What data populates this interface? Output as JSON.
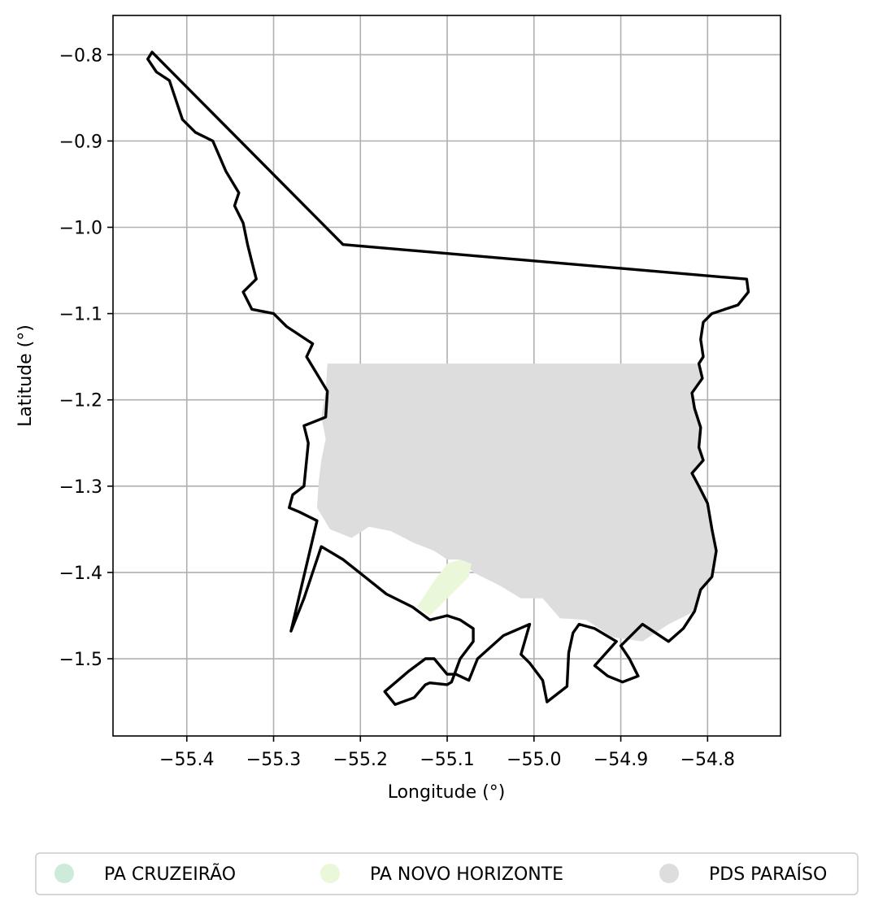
{
  "chart_data": {
    "type": "map",
    "xlabel": "Longitude (°)",
    "ylabel": "Latitude (°)",
    "xlim": [
      -55.485,
      -54.716
    ],
    "ylim": [
      -1.5895,
      -0.7545
    ],
    "grid": true,
    "x_ticks": [
      {
        "value": -55.4,
        "label": "−55.4"
      },
      {
        "value": -55.3,
        "label": "−55.3"
      },
      {
        "value": -55.2,
        "label": "−55.2"
      },
      {
        "value": -55.1,
        "label": "−55.1"
      },
      {
        "value": -55.0,
        "label": "−55.0"
      },
      {
        "value": -54.9,
        "label": "−54.9"
      },
      {
        "value": -54.8,
        "label": "−54.8"
      }
    ],
    "y_ticks": [
      {
        "value": -0.8,
        "label": "−0.8"
      },
      {
        "value": -0.9,
        "label": "−0.9"
      },
      {
        "value": -1.0,
        "label": "−1.0"
      },
      {
        "value": -1.1,
        "label": "−1.1"
      },
      {
        "value": -1.2,
        "label": "−1.2"
      },
      {
        "value": -1.3,
        "label": "−1.3"
      },
      {
        "value": -1.4,
        "label": "−1.4"
      },
      {
        "value": -1.5,
        "label": "−1.5"
      }
    ],
    "legend_position": "bottom",
    "legend": [
      {
        "name": "PA CRUZEIRÃO",
        "color": "#cdeadb"
      },
      {
        "name": "PA NOVO HORIZONTE",
        "color": "#eaf7d9"
      },
      {
        "name": "PDS PARAÍSO",
        "color": "#dddddd"
      }
    ],
    "areas": [
      {
        "name": "PDS PARAÍSO",
        "color": "#dddddd",
        "coords": [
          [
            -55.238,
            -1.158
          ],
          [
            -54.81,
            -1.158
          ],
          [
            -54.806,
            -1.175
          ],
          [
            -54.818,
            -1.192
          ],
          [
            -54.815,
            -1.21
          ],
          [
            -54.808,
            -1.232
          ],
          [
            -54.81,
            -1.255
          ],
          [
            -54.805,
            -1.27
          ],
          [
            -54.818,
            -1.285
          ],
          [
            -54.81,
            -1.3
          ],
          [
            -54.8,
            -1.32
          ],
          [
            -54.795,
            -1.35
          ],
          [
            -54.79,
            -1.375
          ],
          [
            -54.795,
            -1.405
          ],
          [
            -54.808,
            -1.42
          ],
          [
            -54.815,
            -1.445
          ],
          [
            -54.845,
            -1.46
          ],
          [
            -54.875,
            -1.48
          ],
          [
            -54.91,
            -1.475
          ],
          [
            -54.94,
            -1.455
          ],
          [
            -54.97,
            -1.453
          ],
          [
            -54.99,
            -1.43
          ],
          [
            -55.015,
            -1.43
          ],
          [
            -55.04,
            -1.415
          ],
          [
            -55.07,
            -1.4
          ],
          [
            -55.085,
            -1.385
          ],
          [
            -55.1,
            -1.385
          ],
          [
            -55.115,
            -1.375
          ],
          [
            -55.14,
            -1.365
          ],
          [
            -55.165,
            -1.352
          ],
          [
            -55.19,
            -1.347
          ],
          [
            -55.21,
            -1.36
          ],
          [
            -55.235,
            -1.35
          ],
          [
            -55.25,
            -1.325
          ],
          [
            -55.248,
            -1.295
          ],
          [
            -55.245,
            -1.27
          ],
          [
            -55.24,
            -1.245
          ],
          [
            -55.245,
            -1.22
          ],
          [
            -55.24,
            -1.19
          ]
        ]
      },
      {
        "name": "PA NOVO HORIZONTE",
        "color": "#eaf7d9",
        "coords": [
          [
            -55.085,
            -1.385
          ],
          [
            -55.072,
            -1.39
          ],
          [
            -55.075,
            -1.405
          ],
          [
            -55.095,
            -1.425
          ],
          [
            -55.12,
            -1.45
          ],
          [
            -55.135,
            -1.44
          ],
          [
            -55.115,
            -1.41
          ],
          [
            -55.1,
            -1.39
          ]
        ]
      }
    ],
    "outlines": [
      {
        "name": "boundary",
        "coords": [
          [
            -55.44,
            -0.797
          ],
          [
            -55.22,
            -1.02
          ],
          [
            -54.755,
            -1.06
          ],
          [
            -54.753,
            -1.075
          ],
          [
            -54.765,
            -1.09
          ],
          [
            -54.78,
            -1.095
          ],
          [
            -54.795,
            -1.1
          ],
          [
            -54.805,
            -1.11
          ],
          [
            -54.808,
            -1.13
          ],
          [
            -54.805,
            -1.15
          ],
          [
            -54.81,
            -1.158
          ],
          [
            -54.806,
            -1.175
          ],
          [
            -54.818,
            -1.192
          ],
          [
            -54.815,
            -1.21
          ],
          [
            -54.808,
            -1.232
          ],
          [
            -54.81,
            -1.255
          ],
          [
            -54.805,
            -1.27
          ],
          [
            -54.818,
            -1.285
          ],
          [
            -54.81,
            -1.3
          ],
          [
            -54.8,
            -1.32
          ],
          [
            -54.795,
            -1.35
          ],
          [
            -54.79,
            -1.375
          ],
          [
            -54.795,
            -1.405
          ],
          [
            -54.808,
            -1.42
          ],
          [
            -54.815,
            -1.445
          ],
          [
            -54.828,
            -1.465
          ],
          [
            -54.845,
            -1.48
          ],
          [
            -54.875,
            -1.46
          ],
          [
            -54.9,
            -1.485
          ],
          [
            -54.89,
            -1.5
          ],
          [
            -54.88,
            -1.52
          ],
          [
            -54.898,
            -1.527
          ],
          [
            -54.915,
            -1.52
          ],
          [
            -54.93,
            -1.508
          ],
          [
            -54.905,
            -1.48
          ],
          [
            -54.93,
            -1.465
          ],
          [
            -54.948,
            -1.46
          ],
          [
            -54.955,
            -1.47
          ],
          [
            -54.96,
            -1.493
          ],
          [
            -54.962,
            -1.532
          ],
          [
            -54.985,
            -1.55
          ],
          [
            -54.99,
            -1.525
          ],
          [
            -55.005,
            -1.505
          ],
          [
            -55.015,
            -1.495
          ],
          [
            -55.005,
            -1.46
          ],
          [
            -55.035,
            -1.473
          ],
          [
            -55.065,
            -1.5
          ],
          [
            -55.075,
            -1.525
          ],
          [
            -55.09,
            -1.518
          ],
          [
            -55.1,
            -1.518
          ],
          [
            -55.115,
            -1.5
          ],
          [
            -55.125,
            -1.5
          ],
          [
            -55.145,
            -1.515
          ],
          [
            -55.172,
            -1.538
          ],
          [
            -55.16,
            -1.553
          ],
          [
            -55.138,
            -1.545
          ],
          [
            -55.125,
            -1.53
          ],
          [
            -55.12,
            -1.528
          ],
          [
            -55.1,
            -1.53
          ],
          [
            -55.095,
            -1.527
          ],
          [
            -55.085,
            -1.5
          ],
          [
            -55.07,
            -1.48
          ],
          [
            -55.07,
            -1.465
          ],
          [
            -55.085,
            -1.455
          ],
          [
            -55.1,
            -1.45
          ],
          [
            -55.12,
            -1.455
          ],
          [
            -55.14,
            -1.44
          ],
          [
            -55.17,
            -1.425
          ],
          [
            -55.195,
            -1.405
          ],
          [
            -55.22,
            -1.385
          ],
          [
            -55.245,
            -1.37
          ],
          [
            -55.265,
            -1.43
          ],
          [
            -55.28,
            -1.468
          ],
          [
            -55.25,
            -1.34
          ],
          [
            -55.27,
            -1.33
          ],
          [
            -55.282,
            -1.325
          ],
          [
            -55.278,
            -1.31
          ],
          [
            -55.265,
            -1.3
          ],
          [
            -55.26,
            -1.25
          ],
          [
            -55.265,
            -1.23
          ],
          [
            -55.24,
            -1.22
          ],
          [
            -55.238,
            -1.19
          ],
          [
            -55.25,
            -1.17
          ],
          [
            -55.262,
            -1.15
          ],
          [
            -55.255,
            -1.135
          ],
          [
            -55.285,
            -1.115
          ],
          [
            -55.3,
            -1.1
          ],
          [
            -55.325,
            -1.095
          ],
          [
            -55.335,
            -1.075
          ],
          [
            -55.32,
            -1.06
          ],
          [
            -55.325,
            -1.04
          ],
          [
            -55.33,
            -1.02
          ],
          [
            -55.335,
            -0.995
          ],
          [
            -55.345,
            -0.975
          ],
          [
            -55.34,
            -0.96
          ],
          [
            -55.355,
            -0.935
          ],
          [
            -55.37,
            -0.9
          ],
          [
            -55.39,
            -0.89
          ],
          [
            -55.405,
            -0.875
          ],
          [
            -55.415,
            -0.845
          ],
          [
            -55.42,
            -0.83
          ],
          [
            -55.435,
            -0.82
          ],
          [
            -55.445,
            -0.805
          ],
          [
            -55.44,
            -0.797
          ]
        ]
      }
    ]
  }
}
